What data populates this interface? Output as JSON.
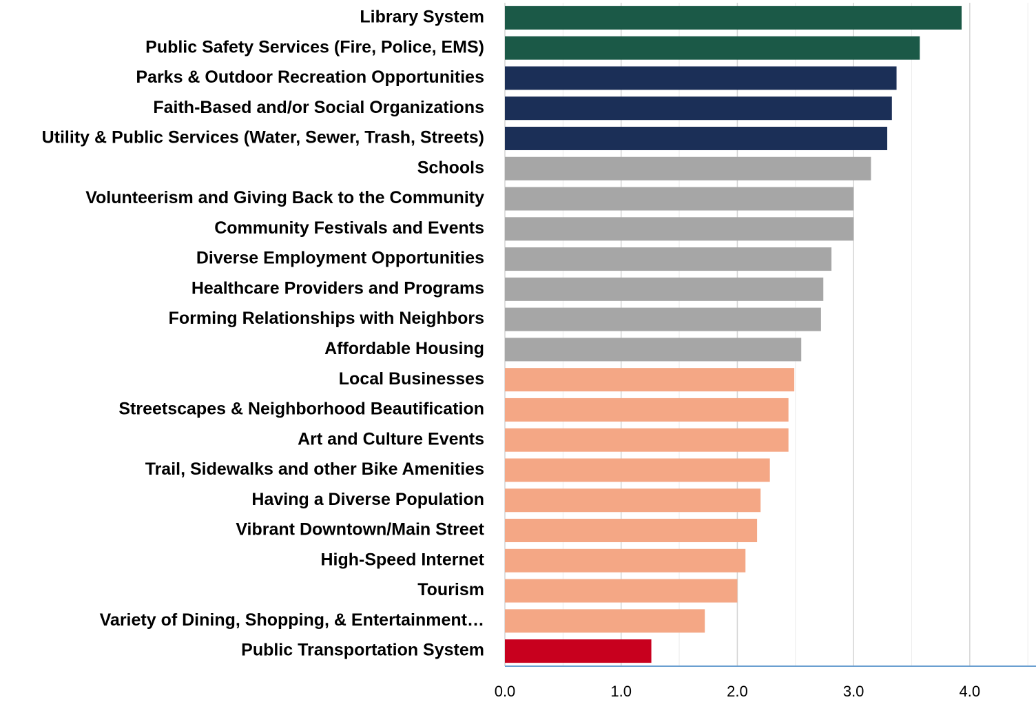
{
  "chart_data": {
    "type": "bar",
    "orientation": "horizontal",
    "categories": [
      "Library System",
      "Public Safety Services (Fire, Police, EMS)",
      "Parks & Outdoor Recreation Opportunities",
      "Faith-Based and/or Social Organizations",
      "Utility & Public Services (Water, Sewer, Trash, Streets)",
      "Schools",
      "Volunteerism and Giving Back to the Community",
      "Community Festivals and Events",
      "Diverse Employment Opportunities",
      "Healthcare Providers and Programs",
      "Forming Relationships with Neighbors",
      "Affordable Housing",
      "Local Businesses",
      "Streetscapes & Neighborhood Beautification",
      "Art and Culture Events",
      "Trail, Sidewalks and other Bike Amenities",
      "Having a Diverse Population",
      "Vibrant Downtown/Main Street",
      "High-Speed Internet",
      "Tourism",
      "Variety of Dining, Shopping, & Entertainment…",
      "Public Transportation System"
    ],
    "values": [
      3.93,
      3.57,
      3.37,
      3.33,
      3.29,
      3.15,
      3.0,
      3.0,
      2.81,
      2.74,
      2.72,
      2.55,
      2.49,
      2.44,
      2.44,
      2.28,
      2.2,
      2.17,
      2.07,
      2.0,
      1.72,
      1.26
    ],
    "colors": [
      "#1b5947",
      "#1b5947",
      "#1b2f57",
      "#1b2f57",
      "#1b2f57",
      "#a6a6a6",
      "#a6a6a6",
      "#a6a6a6",
      "#a6a6a6",
      "#a6a6a6",
      "#a6a6a6",
      "#a6a6a6",
      "#f4a785",
      "#f4a785",
      "#f4a785",
      "#f4a785",
      "#f4a785",
      "#f4a785",
      "#f4a785",
      "#f4a785",
      "#f4a785",
      "#c8001e"
    ],
    "xlim": [
      0,
      4.57
    ],
    "xticks": [
      {
        "value": 0,
        "label": "0.0"
      },
      {
        "value": 1,
        "label": "1.0"
      },
      {
        "value": 2,
        "label": "2.0"
      },
      {
        "value": 3,
        "label": "3.0"
      },
      {
        "value": 4,
        "label": "4.0"
      }
    ],
    "minor_xticks": [
      0.5,
      1.5,
      2.5,
      3.5,
      4.5
    ],
    "grid": true
  }
}
